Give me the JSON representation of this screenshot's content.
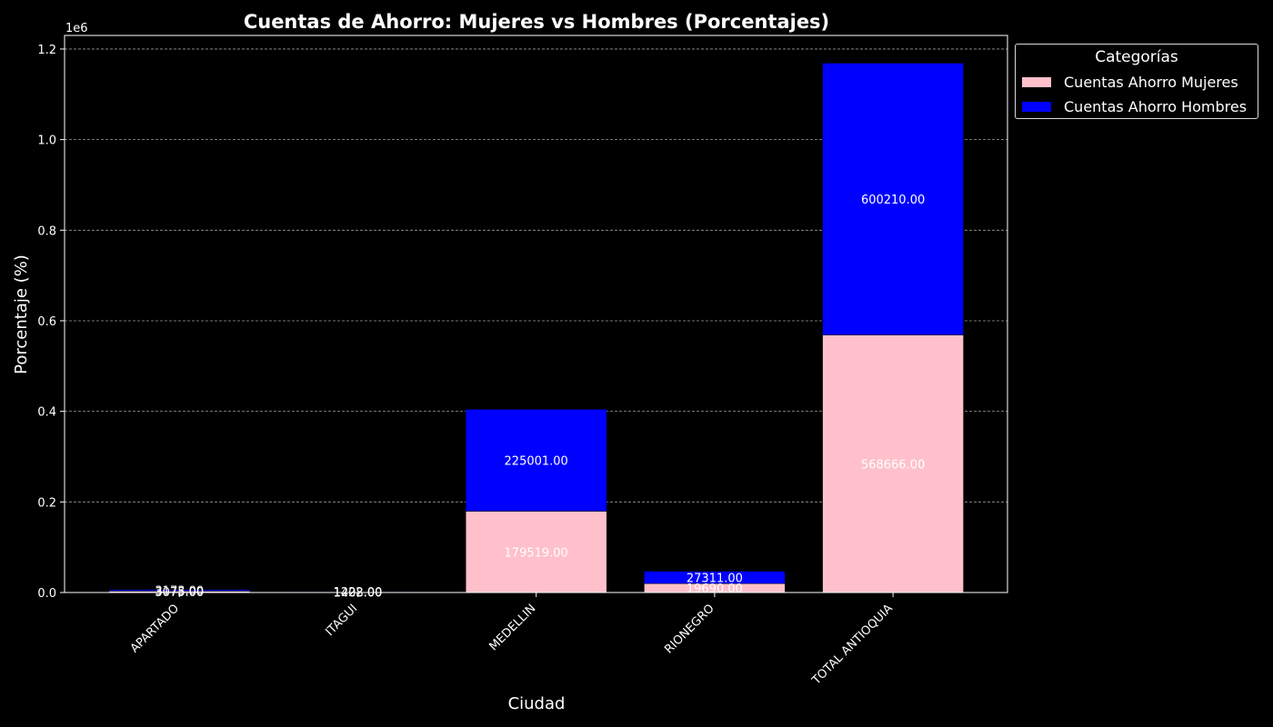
{
  "chart_data": {
    "type": "bar",
    "stacked": true,
    "title": "Cuentas de Ahorro: Mujeres vs Hombres (Porcentajes)",
    "xlabel": "Ciudad",
    "ylabel": "Porcentaje (%)",
    "y_offset_text": "1e6",
    "categories": [
      "APARTADO",
      "ITAGUI",
      "MEDELLIN",
      "RIONEGRO",
      "TOTAL ANTIOQUIA"
    ],
    "series": [
      {
        "name": "Cuentas Ahorro Mujeres",
        "color": "#FFC0CB",
        "values": [
          3075,
          1408,
          179519,
          19690,
          568666
        ],
        "labels": [
          "3075.00",
          "1408.00",
          "179519.00",
          "19690.00",
          "568666.00"
        ]
      },
      {
        "name": "Cuentas Ahorro Hombres",
        "color": "#0000FF",
        "values": [
          3173,
          1222,
          225001,
          27311,
          600210
        ],
        "labels": [
          "3173.00",
          "1222.00",
          "225001.00",
          "27311.00",
          "600210.00"
        ]
      }
    ],
    "ylim": [
      0,
      1230000
    ],
    "yticks": [
      0,
      200000,
      400000,
      600000,
      800000,
      1000000,
      1200000
    ],
    "ytick_labels": [
      "0.0",
      "0.2",
      "0.4",
      "0.6",
      "0.8",
      "1.0",
      "1.2"
    ],
    "grid": "horizontal dashed",
    "legend": {
      "title": "Categorías",
      "placement": "outside top-right"
    }
  }
}
